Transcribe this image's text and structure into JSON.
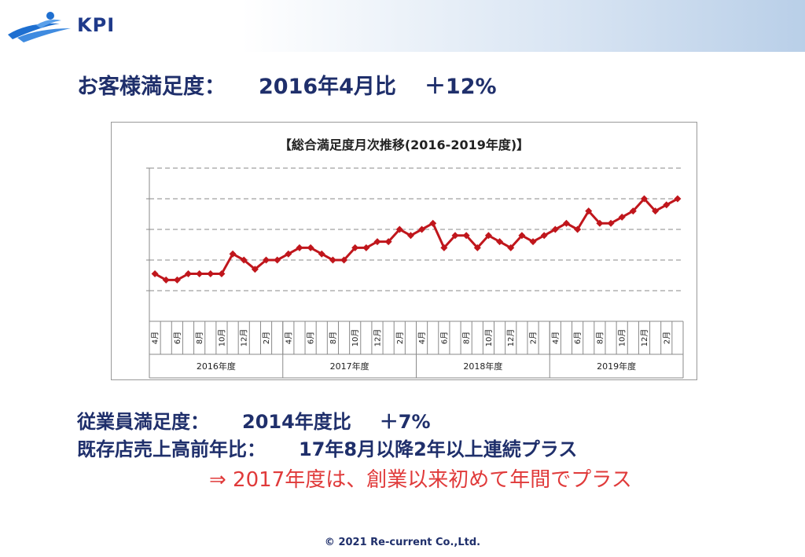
{
  "header": {
    "brand": "KPI"
  },
  "customer": {
    "label": "お客様満足度：",
    "compare": "2016年4月比",
    "delta": "＋12%"
  },
  "employee": {
    "label": "従業員満足度：",
    "compare": "2014年度比",
    "delta": "＋7%"
  },
  "sales": {
    "label": "既存店売上高前年比：",
    "text": "17年8月以降2年以上連続プラス"
  },
  "note": {
    "text": "⇒ 2017年度は、創業以来初めて年間でプラス"
  },
  "footer": {
    "copyright": "© 2021 Re-current Co.,Ltd."
  },
  "colors": {
    "series": "#c0161c",
    "text": "#1f2f6b",
    "accent_red": "#e03a3a"
  },
  "chart_data": {
    "type": "line",
    "title": "【総合満足度月次推移(2016-2019年度)】",
    "xlabel": "",
    "ylabel": "",
    "grid": true,
    "legend": "none",
    "month_labels": [
      "4月",
      "",
      "6月",
      "",
      "8月",
      "",
      "10月",
      "",
      "12月",
      "",
      "2月",
      ""
    ],
    "years": [
      "2016年度",
      "2017年度",
      "2018年度",
      "2019年度"
    ],
    "ylim": [
      0,
      5
    ],
    "series": [
      {
        "name": "",
        "values": [
          1.55,
          1.35,
          1.35,
          1.55,
          1.55,
          1.55,
          1.55,
          2.2,
          2.0,
          1.7,
          2.0,
          2.0,
          2.2,
          2.4,
          2.4,
          2.2,
          2.0,
          2.0,
          2.4,
          2.4,
          2.6,
          2.6,
          3.0,
          2.8,
          3.0,
          3.2,
          2.4,
          2.8,
          2.8,
          2.4,
          2.8,
          2.6,
          2.4,
          2.8,
          2.6,
          2.8,
          3.0,
          3.2,
          3.0,
          3.6,
          3.2,
          3.2,
          3.4,
          3.6,
          4.0,
          3.6,
          3.8,
          4.0
        ]
      }
    ]
  }
}
